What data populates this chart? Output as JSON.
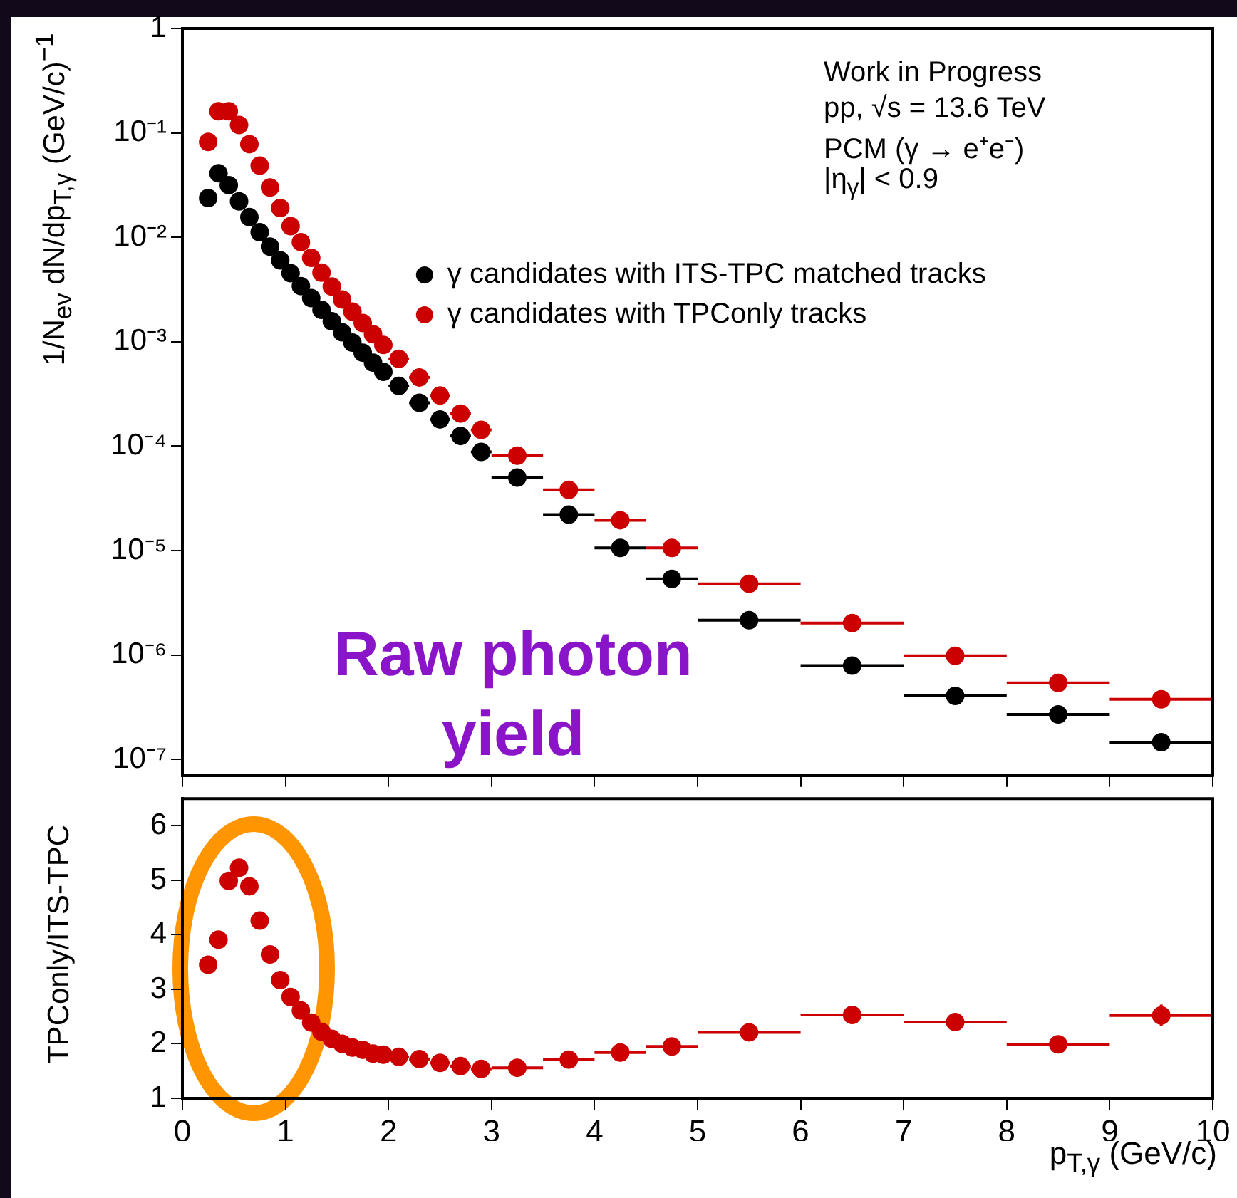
{
  "chart_data": [
    {
      "type": "scatter",
      "ylabel": "1/N$_{ev}$ dN/dp$_{T,γ}$ (GeV/c)$^{−1}$",
      "annotations": [
        "Work in Progress",
        "pp, √s = 13.6 TeV",
        "PCM (γ → e⁺e⁻)",
        "|η$_{γ}$| < 0.9",
        "Raw photon yield"
      ],
      "x": [
        0.25,
        0.35,
        0.45,
        0.55,
        0.65,
        0.75,
        0.85,
        0.95,
        1.05,
        1.15,
        1.25,
        1.35,
        1.45,
        1.55,
        1.65,
        1.75,
        1.85,
        1.95,
        2.1,
        2.3,
        2.5,
        2.7,
        2.9,
        3.25,
        3.75,
        4.25,
        4.75,
        5.5,
        6.5,
        7.5,
        8.5,
        9.5
      ],
      "series": [
        {
          "name": "γ candidates with ITS-TPC matched tracks",
          "color": "#000000",
          "values": [
            0.0238,
            0.041,
            0.0316,
            0.0221,
            0.0156,
            0.0112,
            0.00815,
            0.00602,
            0.00453,
            0.00341,
            0.00262,
            0.00202,
            0.00157,
            0.00123,
            0.00098,
            0.000785,
            0.00063,
            0.000515,
            0.000377,
            0.00026,
            0.00018,
            0.000125,
            8.8e-05,
            5e-05,
            2.21e-05,
            1.06e-05,
            5.35e-06,
            2.15e-06,
            7.9e-07,
            4.05e-07,
            2.69e-07,
            1.46e-07
          ],
          "xerrors": [
            0.05,
            0.05,
            0.05,
            0.05,
            0.05,
            0.05,
            0.05,
            0.05,
            0.05,
            0.05,
            0.05,
            0.05,
            0.05,
            0.05,
            0.05,
            0.05,
            0.05,
            0.05,
            0.1,
            0.1,
            0.1,
            0.1,
            0.1,
            0.25,
            0.25,
            0.25,
            0.25,
            0.5,
            0.5,
            0.5,
            0.5,
            0.5
          ]
        },
        {
          "name": "γ candidates with TPConly tracks",
          "color": "#cc0000",
          "values": [
            0.082,
            0.161,
            0.161,
            0.119,
            0.078,
            0.0486,
            0.03,
            0.0191,
            0.0128,
            0.009,
            0.00635,
            0.00459,
            0.00338,
            0.00254,
            0.00194,
            0.00151,
            0.00118,
            0.00093,
            0.000686,
            0.000455,
            0.000305,
            0.000205,
            0.000143,
            8.1e-05,
            3.81e-05,
            1.95e-05,
            1.06e-05,
            4.8e-06,
            2.02e-06,
            9.8e-07,
            5.4e-07,
            3.76e-07
          ],
          "xerrors": [
            0.05,
            0.05,
            0.05,
            0.05,
            0.05,
            0.05,
            0.05,
            0.05,
            0.05,
            0.05,
            0.05,
            0.05,
            0.05,
            0.05,
            0.05,
            0.05,
            0.05,
            0.05,
            0.1,
            0.1,
            0.1,
            0.1,
            0.1,
            0.25,
            0.25,
            0.25,
            0.25,
            0.5,
            0.5,
            0.5,
            0.5,
            0.5
          ]
        }
      ],
      "xlim": [
        0,
        10
      ],
      "xticks": [
        0,
        1,
        2,
        3,
        4,
        5,
        6,
        7,
        8,
        9,
        10
      ],
      "ylim": [
        7e-08,
        1
      ],
      "yticks": [
        {
          "value": 1,
          "label": "1"
        },
        {
          "value": 0.1,
          "label": "10⁻¹"
        },
        {
          "value": 0.01,
          "label": "10⁻²"
        },
        {
          "value": 0.001,
          "label": "10⁻³"
        },
        {
          "value": 0.0001,
          "label": "10⁻⁴"
        },
        {
          "value": 1e-05,
          "label": "10⁻⁵"
        },
        {
          "value": 1e-06,
          "label": "10⁻⁶"
        },
        {
          "value": 1e-07,
          "label": "10⁻⁷"
        }
      ],
      "log": true,
      "grid": false,
      "legend": "top right",
      "marker": "circle",
      "tick_labels": "y"
    },
    {
      "type": "scatter",
      "xlabel": "p$_{T,γ}$ (GeV/c)",
      "ylabel": "TPConly/ITS-TPC",
      "x": [
        0.25,
        0.35,
        0.45,
        0.55,
        0.65,
        0.75,
        0.85,
        0.95,
        1.05,
        1.15,
        1.25,
        1.35,
        1.45,
        1.55,
        1.65,
        1.75,
        1.85,
        1.95,
        2.1,
        2.3,
        2.5,
        2.7,
        2.9,
        3.25,
        3.75,
        4.25,
        4.75,
        5.5,
        6.5,
        7.5,
        8.5,
        9.5
      ],
      "series": [
        {
          "color": "#cc0000",
          "values": [
            3.45,
            3.91,
            4.99,
            5.23,
            4.89,
            4.26,
            3.64,
            3.17,
            2.86,
            2.61,
            2.39,
            2.22,
            2.09,
            2.0,
            1.93,
            1.89,
            1.82,
            1.8,
            1.76,
            1.72,
            1.65,
            1.59,
            1.54,
            1.56,
            1.71,
            1.84,
            1.95,
            2.21,
            2.53,
            2.4,
            1.99,
            2.52
          ],
          "xerrors": [
            0.05,
            0.05,
            0.05,
            0.05,
            0.05,
            0.05,
            0.05,
            0.05,
            0.05,
            0.05,
            0.05,
            0.05,
            0.05,
            0.05,
            0.05,
            0.05,
            0.05,
            0.05,
            0.1,
            0.1,
            0.1,
            0.1,
            0.1,
            0.25,
            0.25,
            0.25,
            0.25,
            0.5,
            0.5,
            0.5,
            0.5,
            0.5
          ],
          "errors": [
            null,
            null,
            null,
            null,
            null,
            null,
            null,
            null,
            null,
            null,
            null,
            null,
            null,
            null,
            null,
            null,
            null,
            null,
            null,
            null,
            null,
            null,
            null,
            null,
            null,
            null,
            null,
            null,
            null,
            null,
            null,
            0.2
          ]
        }
      ],
      "xlim": [
        0,
        10
      ],
      "xticks": [
        0,
        1,
        2,
        3,
        4,
        5,
        6,
        7,
        8,
        9,
        10
      ],
      "ylim": [
        1,
        6.5
      ],
      "yticks": [
        1,
        2,
        3,
        4,
        5,
        6
      ],
      "grid": false,
      "marker": "circle"
    }
  ]
}
